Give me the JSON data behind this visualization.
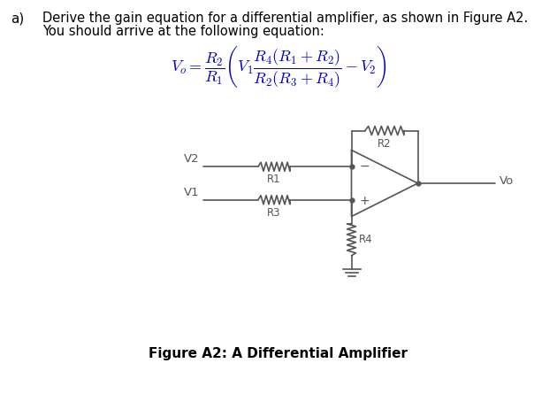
{
  "title_a": "a)",
  "text_line1": "Derive the gain equation for a differential amplifier, as shown in Figure A2.",
  "text_line2": "You should arrive at the following equation:",
  "figure_caption": "Figure A2: A Differential Amplifier",
  "bg_color": "#ffffff",
  "text_color": "#000000",
  "circuit_color": "#555555",
  "figsize": [
    6.3,
    4.45
  ],
  "dpi": 100
}
